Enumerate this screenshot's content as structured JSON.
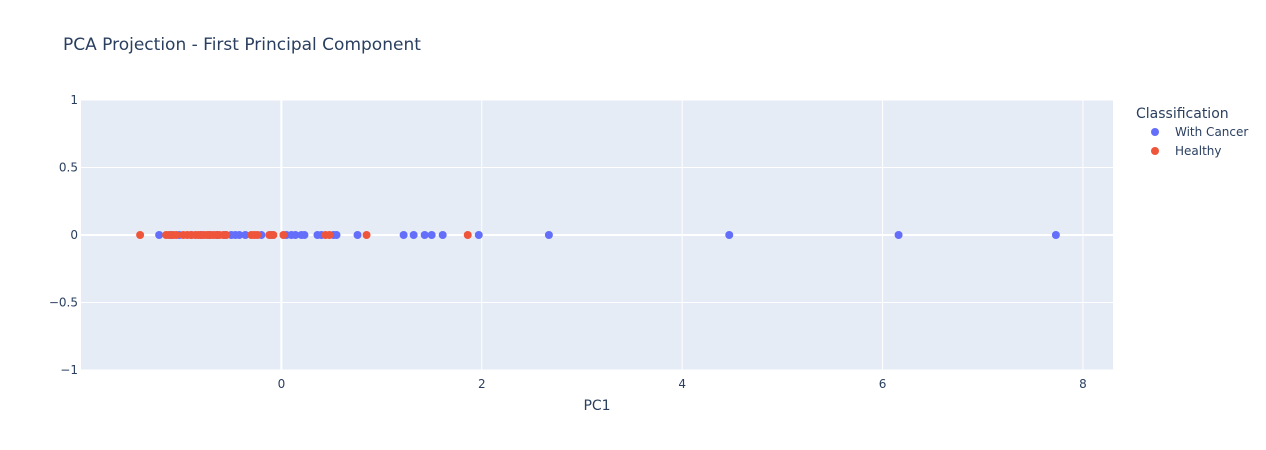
{
  "chart_data": {
    "type": "scatter",
    "title": "PCA Projection - First Principal Component",
    "xlabel": "PC1",
    "ylabel": "",
    "xlim": [
      -2.0,
      8.3
    ],
    "ylim": [
      -1,
      1
    ],
    "x_ticks": [
      0,
      2,
      4,
      6,
      8
    ],
    "x_tick_labels": [
      "0",
      "2",
      "4",
      "6",
      "8"
    ],
    "y_ticks": [
      1,
      0.5,
      0,
      -0.5,
      -1
    ],
    "y_tick_labels": [
      "1",
      "0.5",
      "0",
      "−0.5",
      "−1"
    ],
    "grid": true,
    "legend_title": "Classification",
    "legend_position": "right",
    "plot_bgcolor": "#e5ecf6",
    "series": [
      {
        "name": "With Cancer",
        "color": "#636efa",
        "x": [
          -1.22,
          -1.1,
          -1.02,
          -0.9,
          -0.8,
          -0.72,
          -0.64,
          -0.56,
          -0.5,
          -0.46,
          -0.42,
          -0.36,
          -0.2,
          -0.1,
          0.05,
          0.1,
          0.14,
          0.2,
          0.23,
          0.36,
          0.4,
          0.52,
          0.55,
          0.76,
          1.22,
          1.32,
          1.43,
          1.5,
          1.61,
          1.97,
          2.67,
          4.47,
          6.16,
          7.73
        ],
        "y": [
          0,
          0,
          0,
          0,
          0,
          0,
          0,
          0,
          0,
          0,
          0,
          0,
          0,
          0,
          0,
          0,
          0,
          0,
          0,
          0,
          0,
          0,
          0,
          0,
          0,
          0,
          0,
          0,
          0,
          0,
          0,
          0,
          0,
          0
        ]
      },
      {
        "name": "Healthy",
        "color": "#ef553b",
        "x": [
          -1.41,
          -1.15,
          -1.12,
          -1.08,
          -1.05,
          -0.98,
          -0.94,
          -0.9,
          -0.86,
          -0.83,
          -0.8,
          -0.77,
          -0.74,
          -0.71,
          -0.68,
          -0.65,
          -0.62,
          -0.58,
          -0.55,
          -0.3,
          -0.27,
          -0.24,
          -0.12,
          -0.08,
          0.02,
          0.44,
          0.48,
          0.85,
          1.86
        ],
        "y": [
          0,
          0,
          0,
          0,
          0,
          0,
          0,
          0,
          0,
          0,
          0,
          0,
          0,
          0,
          0,
          0,
          0,
          0,
          0,
          0,
          0,
          0,
          0,
          0,
          0,
          0,
          0,
          0,
          0
        ]
      }
    ]
  }
}
